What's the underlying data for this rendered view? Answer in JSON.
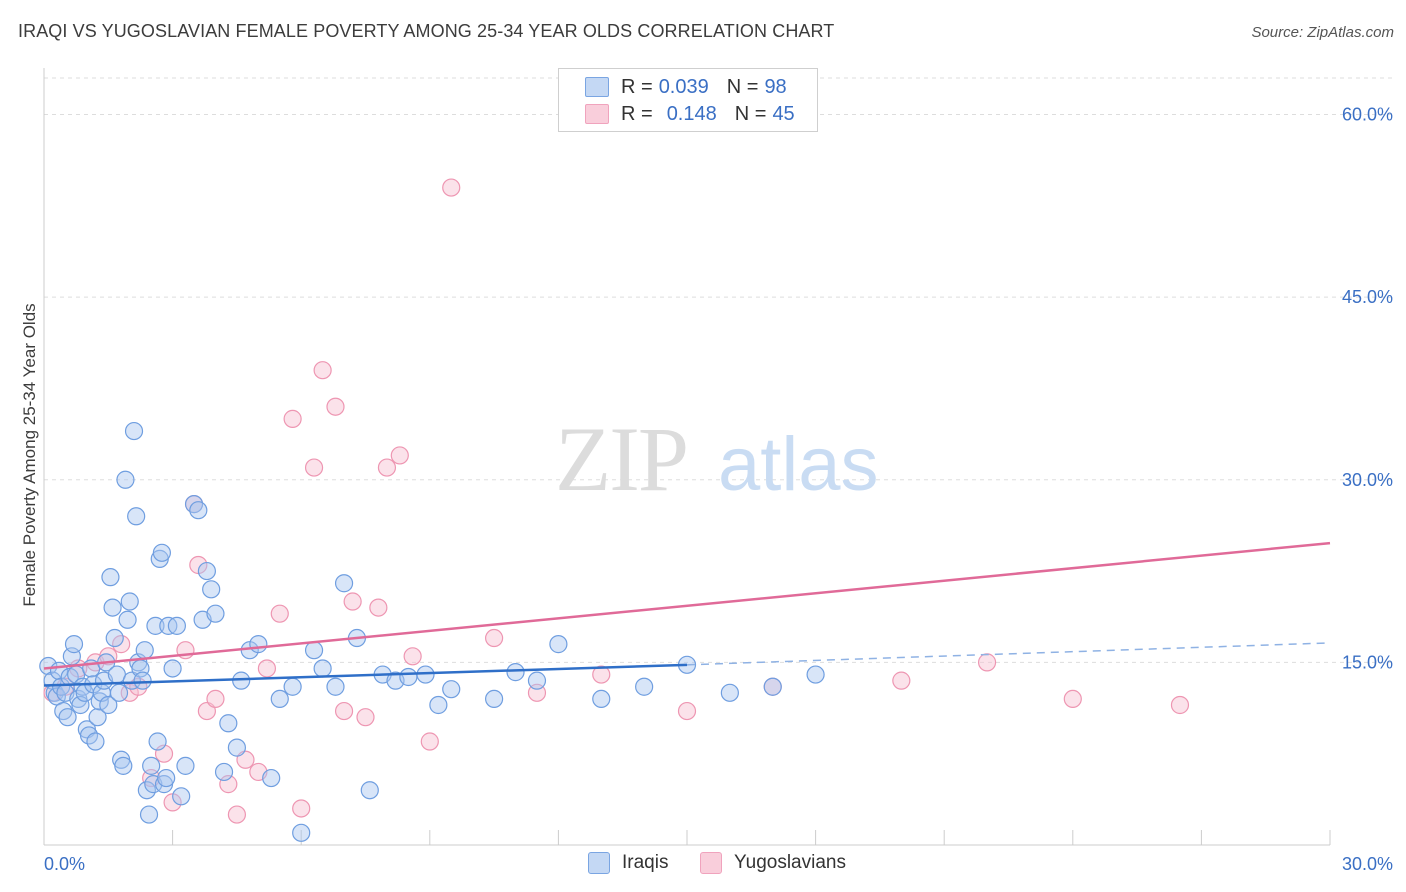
{
  "header": {
    "title": "IRAQI VS YUGOSLAVIAN FEMALE POVERTY AMONG 25-34 YEAR OLDS CORRELATION CHART",
    "source": "Source: ZipAtlas.com"
  },
  "watermark": {
    "zip": "ZIP",
    "atlas": "atlas"
  },
  "colors": {
    "iraqi_fill": "#a9c6f0",
    "iraqi_stroke": "#6f9ee0",
    "iraqi_line": "#2f6fc8",
    "yugo_fill": "#f7bfd0",
    "yugo_stroke": "#ee96b2",
    "yugo_line": "#e06a98",
    "tick_text": "#3a6fc4",
    "grid": "#dddddd"
  },
  "legend": {
    "rows": [
      {
        "r_label": "R =",
        "r_value": "0.039",
        "n_label": "N =",
        "n_value": "98"
      },
      {
        "r_label": "R =",
        "r_value": "0.148",
        "n_label": "N =",
        "n_value": "45"
      }
    ]
  },
  "bottom_legend": {
    "iraqi": "Iraqis",
    "yugo": "Yugoslavians"
  },
  "chart_data": {
    "type": "scatter",
    "title": "IRAQI VS YUGOSLAVIAN FEMALE POVERTY AMONG 25-34 YEAR OLDS CORRELATION CHART",
    "xlabel": "",
    "ylabel": "Female Poverty Among 25-34 Year Olds",
    "xlim": [
      0,
      30
    ],
    "ylim": [
      0,
      63
    ],
    "x_tick_labels": [
      {
        "value": 0,
        "label": "0.0%"
      },
      {
        "value": 30,
        "label": "30.0%"
      }
    ],
    "y_tick_labels": [
      {
        "value": 15,
        "label": "15.0%"
      },
      {
        "value": 30,
        "label": "30.0%"
      },
      {
        "value": 45,
        "label": "45.0%"
      },
      {
        "value": 60,
        "label": "60.0%"
      }
    ],
    "x_minor_ticks": [
      3,
      6,
      9,
      12,
      15,
      18,
      21,
      24,
      27,
      30
    ],
    "series": [
      {
        "name": "Iraqis",
        "x": [
          0.1,
          0.2,
          0.25,
          0.3,
          0.35,
          0.4,
          0.45,
          0.5,
          0.55,
          0.6,
          0.65,
          0.7,
          0.75,
          0.8,
          0.85,
          0.9,
          0.95,
          1.0,
          1.05,
          1.1,
          1.15,
          1.2,
          1.25,
          1.3,
          1.35,
          1.4,
          1.45,
          1.5,
          1.55,
          1.6,
          1.65,
          1.7,
          1.75,
          1.8,
          1.85,
          1.9,
          1.95,
          2.0,
          2.05,
          2.1,
          2.15,
          2.2,
          2.25,
          2.3,
          2.35,
          2.4,
          2.45,
          2.5,
          2.55,
          2.6,
          2.65,
          2.7,
          2.75,
          2.8,
          2.85,
          2.9,
          3.0,
          3.1,
          3.2,
          3.3,
          3.5,
          3.6,
          3.7,
          3.8,
          3.9,
          4.0,
          4.2,
          4.3,
          4.5,
          4.6,
          4.8,
          5.0,
          5.3,
          5.5,
          5.8,
          6.0,
          6.3,
          6.5,
          6.8,
          7.0,
          7.3,
          7.6,
          7.9,
          8.2,
          8.5,
          8.9,
          9.2,
          9.5,
          10.5,
          11.0,
          11.5,
          12.0,
          13.0,
          14.0,
          15.0,
          16.0,
          17.0,
          18.0
        ],
        "y": [
          14.7,
          13.5,
          12.5,
          12.2,
          14.3,
          13.0,
          11.0,
          12.5,
          10.5,
          13.8,
          15.5,
          16.5,
          14.0,
          12.0,
          11.5,
          13.0,
          12.5,
          9.5,
          9.0,
          14.5,
          13.2,
          8.5,
          10.5,
          11.8,
          12.5,
          13.5,
          15.0,
          11.5,
          22.0,
          19.5,
          17.0,
          14.0,
          12.5,
          7.0,
          6.5,
          30.0,
          18.5,
          20.0,
          13.5,
          34.0,
          27.0,
          15.0,
          14.5,
          13.5,
          16.0,
          4.5,
          2.5,
          6.5,
          5.0,
          18.0,
          8.5,
          23.5,
          24.0,
          5.0,
          5.5,
          18.0,
          14.5,
          18.0,
          4.0,
          6.5,
          28.0,
          27.5,
          18.5,
          22.5,
          21.0,
          19.0,
          6.0,
          10.0,
          8.0,
          13.5,
          16.0,
          16.5,
          5.5,
          12.0,
          13.0,
          1.0,
          16.0,
          14.5,
          13.0,
          21.5,
          17.0,
          4.5,
          14.0,
          13.5,
          13.8,
          14.0,
          11.5,
          12.8,
          12.0,
          14.2,
          13.5,
          16.5,
          12.0,
          13.0,
          14.8,
          12.5,
          13.0,
          14.0
        ]
      },
      {
        "name": "Yugoslavians",
        "x": [
          0.2,
          0.5,
          0.8,
          1.2,
          1.5,
          1.8,
          2.0,
          2.2,
          2.5,
          2.8,
          3.0,
          3.3,
          3.5,
          3.6,
          3.8,
          4.0,
          4.3,
          4.5,
          4.7,
          5.0,
          5.2,
          5.5,
          5.8,
          6.0,
          6.3,
          6.5,
          6.8,
          7.0,
          7.2,
          7.5,
          7.8,
          8.0,
          8.3,
          8.6,
          9.0,
          9.5,
          10.5,
          11.5,
          13.0,
          15.0,
          17.0,
          20.0,
          22.0,
          24.0,
          26.5
        ],
        "y": [
          12.5,
          13.0,
          14.5,
          15.0,
          15.5,
          16.5,
          12.5,
          13.0,
          5.5,
          7.5,
          3.5,
          16.0,
          28.0,
          23.0,
          11.0,
          12.0,
          5.0,
          2.5,
          7.0,
          6.0,
          14.5,
          19.0,
          35.0,
          3.0,
          31.0,
          39.0,
          36.0,
          11.0,
          20.0,
          10.5,
          19.5,
          31.0,
          32.0,
          15.5,
          8.5,
          54.0,
          17.0,
          12.5,
          14.0,
          11.0,
          13.0,
          13.5,
          15.0,
          12.0,
          11.5
        ]
      }
    ],
    "trend_lines": [
      {
        "series": "Iraqis",
        "solid_from": [
          0,
          13.1
        ],
        "solid_to": [
          15,
          14.8
        ],
        "dashed_to": [
          30,
          16.6
        ]
      },
      {
        "series": "Yugoslavians",
        "from": [
          0,
          14.5
        ],
        "to": [
          30,
          24.8
        ]
      }
    ]
  }
}
